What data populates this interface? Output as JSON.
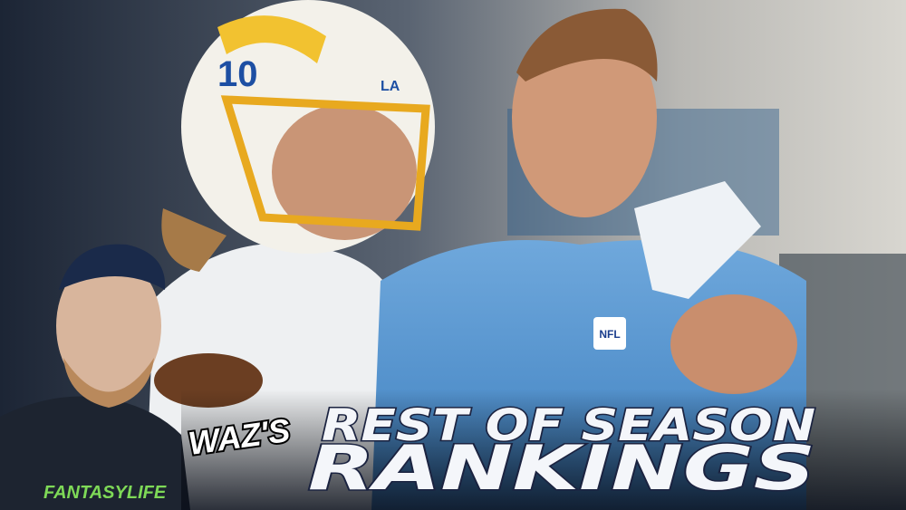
{
  "texts": {
    "brand": "WAZ'S",
    "headline_1": "REST OF SEASON",
    "headline_2": "RANKINGS",
    "shirt_logo": "FANTASYLIFE",
    "helmet_number": "10",
    "helmet_logo": "LA",
    "jersey_logo": "NFL"
  }
}
